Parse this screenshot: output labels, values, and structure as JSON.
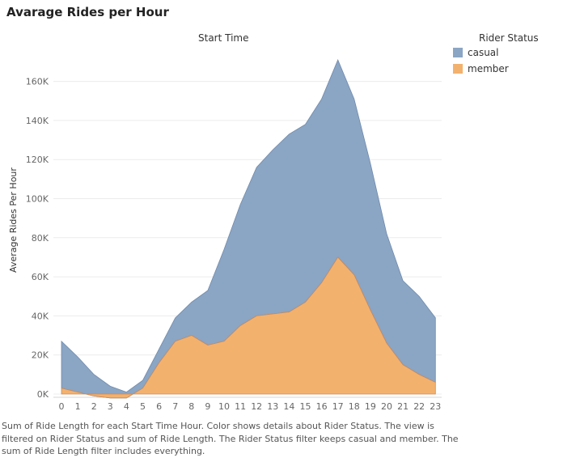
{
  "title": "Avarage Rides per Hour",
  "chart_data": {
    "type": "area",
    "stacked": true,
    "column_header": "Start Time",
    "ylabel": "Average Rides Per Hour",
    "x": [
      "0",
      "1",
      "2",
      "3",
      "4",
      "5",
      "6",
      "7",
      "8",
      "9",
      "10",
      "11",
      "12",
      "13",
      "14",
      "15",
      "16",
      "17",
      "18",
      "19",
      "20",
      "21",
      "22",
      "23"
    ],
    "yticks": [
      "0K",
      "20K",
      "40K",
      "60K",
      "80K",
      "100K",
      "120K",
      "140K",
      "160K"
    ],
    "ylim": [
      0,
      175000
    ],
    "legend_title": "Rider Status",
    "legend_position": "top-right",
    "grid": true,
    "series": [
      {
        "name": "member",
        "color": "#f3b16e",
        "values": [
          3000,
          1000,
          -1000,
          -2000,
          -2000,
          3000,
          16000,
          27000,
          30000,
          25000,
          27000,
          35000,
          40000,
          41000,
          42000,
          47000,
          57000,
          70000,
          61000,
          43000,
          26000,
          15000,
          10000,
          6000
        ]
      },
      {
        "name": "casual",
        "color": "#8ba5c4",
        "values": [
          24000,
          18000,
          11000,
          6000,
          3000,
          4000,
          7000,
          12000,
          17000,
          28000,
          47000,
          62000,
          76000,
          84000,
          91000,
          91000,
          94000,
          101000,
          90000,
          75000,
          56000,
          43000,
          40000,
          33000
        ]
      }
    ]
  },
  "caption": "Sum of Ride Length for each Start Time Hour.  Color shows details about Rider Status. The view is filtered on Rider Status and sum of Ride Length. The Rider Status filter keeps casual and member. The sum of Ride Length filter includes everything."
}
